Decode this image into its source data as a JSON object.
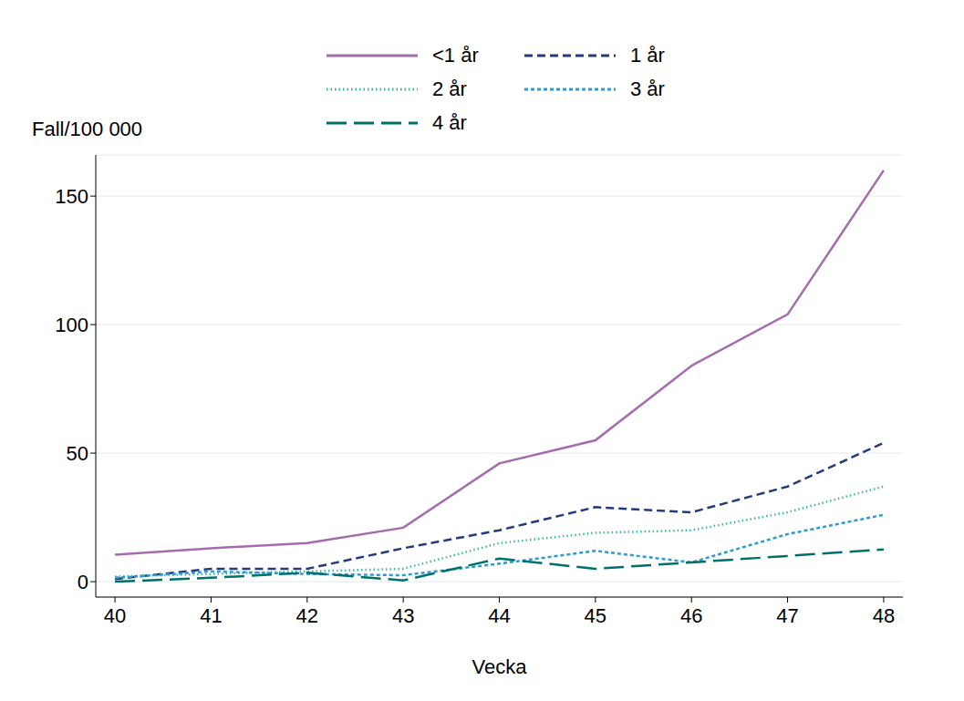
{
  "chart_data": {
    "type": "line",
    "x_label": "Vecka",
    "y_label": "Fall/100 000",
    "x": [
      40,
      41,
      42,
      43,
      44,
      45,
      46,
      47,
      48
    ],
    "xlim": [
      39.8,
      48.2
    ],
    "xticks": [
      40,
      41,
      42,
      43,
      44,
      45,
      46,
      47,
      48
    ],
    "ylim": [
      -6,
      166
    ],
    "yticks": [
      0,
      50,
      100,
      150
    ],
    "grid": true,
    "legend": "top",
    "series": [
      {
        "name": "<1 år",
        "color": "#a46bad",
        "line_style": "solid",
        "values": [
          10.5,
          13,
          15,
          21,
          46,
          55,
          84,
          104,
          160
        ]
      },
      {
        "name": "1 år",
        "color": "#233a7e",
        "line_style": "dashed",
        "values": [
          1,
          5,
          5,
          13,
          20,
          29,
          27,
          37,
          54
        ]
      },
      {
        "name": "2 år",
        "color": "#3fb99f",
        "line_style": "dotted",
        "values": [
          2,
          3,
          4,
          5,
          15,
          19,
          20,
          27,
          37
        ]
      },
      {
        "name": "3 år",
        "color": "#2b9bd6",
        "line_style": "short_dash",
        "values": [
          1.5,
          4,
          3,
          2.5,
          7,
          12,
          7.5,
          18.5,
          26
        ]
      },
      {
        "name": "4 år",
        "color": "#00706a",
        "line_style": "long_dash",
        "values": [
          0,
          1.5,
          3.5,
          0.5,
          9,
          5,
          7.5,
          10,
          12.5
        ]
      }
    ]
  }
}
